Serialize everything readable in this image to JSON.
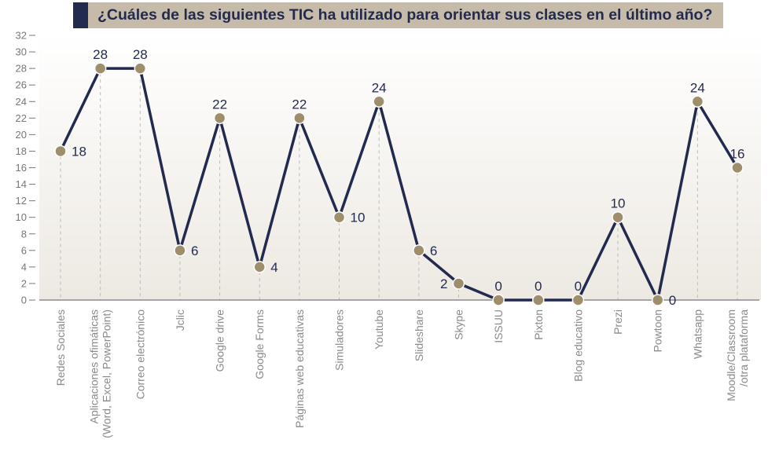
{
  "title": "¿Cuáles de las siguientes TIC ha utilizado para orientar sus clases en el último año?",
  "colors": {
    "line": "#232a4f",
    "marker": "#9e8e6c",
    "title_bar": "#c5bba8",
    "title_accent": "#232a4f",
    "title_text": "#232a4f",
    "axis": "#777777",
    "guides": "#bbbbbb"
  },
  "chart_data": {
    "type": "line",
    "title": "¿Cuáles de las siguientes TIC ha utilizado para orientar sus clases en el último año?",
    "xlabel": "",
    "ylabel": "",
    "ylim": [
      0,
      32
    ],
    "yticks": [
      0,
      2,
      4,
      6,
      8,
      10,
      12,
      14,
      16,
      18,
      20,
      22,
      24,
      26,
      28,
      30,
      32
    ],
    "grid": false,
    "legend": "none",
    "categories": [
      [
        "Redes Sociales"
      ],
      [
        "Aplicaciones ofimáticas",
        "(Word, Excel, PowerPoint)"
      ],
      [
        "Correo electrónico"
      ],
      [
        "Jclic"
      ],
      [
        "Google drive"
      ],
      [
        "Google Forms"
      ],
      [
        "Páginas web educativas"
      ],
      [
        "Simuladores"
      ],
      [
        "Youtube"
      ],
      [
        "Slideshare"
      ],
      [
        "Skype"
      ],
      [
        "ISSUU"
      ],
      [
        "Pixton"
      ],
      [
        "Blog educativo"
      ],
      [
        "Prezi"
      ],
      [
        "Powtoon"
      ],
      [
        "Whatsapp"
      ],
      [
        "Moodle/Classroom",
        "/otra plataforma"
      ]
    ],
    "values": [
      18,
      28,
      28,
      6,
      22,
      4,
      22,
      10,
      24,
      6,
      2,
      0,
      0,
      0,
      10,
      0,
      24,
      16
    ],
    "label_positions": [
      "right",
      "top",
      "top",
      "right",
      "top",
      "right",
      "top",
      "right",
      "top",
      "right",
      "left",
      "top",
      "top",
      "top",
      "top",
      "right",
      "top",
      "top"
    ]
  }
}
